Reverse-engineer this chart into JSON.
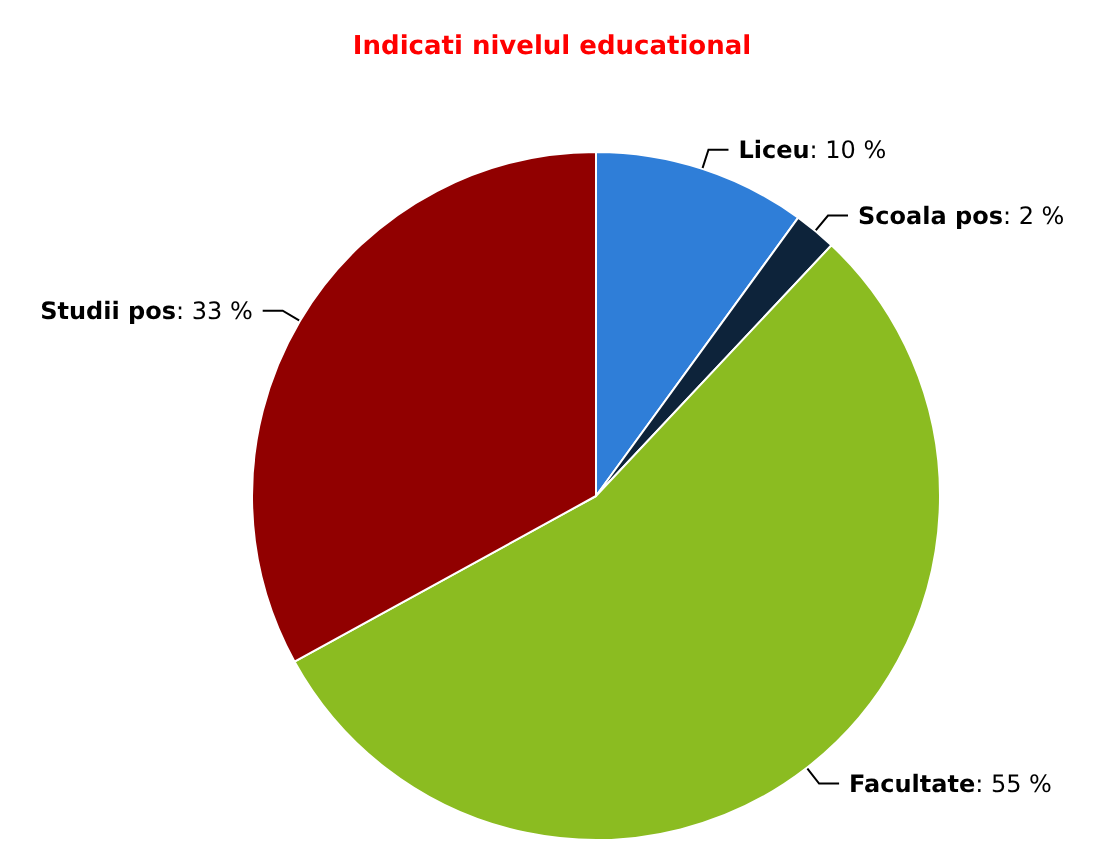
{
  "chart_data": {
    "type": "pie",
    "title": "Indicati nivelul educational",
    "categories": [
      "Liceu",
      "Scoala pos",
      "Facultate",
      "Studii pos"
    ],
    "values": [
      10,
      2,
      55,
      33
    ],
    "value_labels": [
      ": 10 %",
      ": 2 %",
      ": 55 %",
      ": 33 %"
    ],
    "colors": [
      "#2f7ed8",
      "#0d233a",
      "#8bbc21",
      "#910000"
    ]
  }
}
